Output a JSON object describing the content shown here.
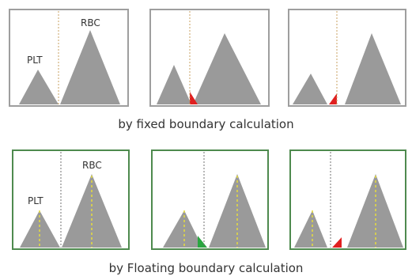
{
  "labels": {
    "plt": "PLT",
    "rbc": "RBC"
  },
  "captions": {
    "fixed": "by fixed boundary calculation",
    "floating": "by Floating boundary calculation"
  },
  "colors": {
    "peak": "#9a9a9a",
    "fixed_frame": "#9e9e9e",
    "floating_frame": "#4e8a4e",
    "fixed_boundary_line": "#c8a060",
    "floating_boundary_line": "#707070",
    "peak_axis_line": "#e6dc3c",
    "overlap_red": "#e02020",
    "overlap_green": "#2aa640"
  }
}
